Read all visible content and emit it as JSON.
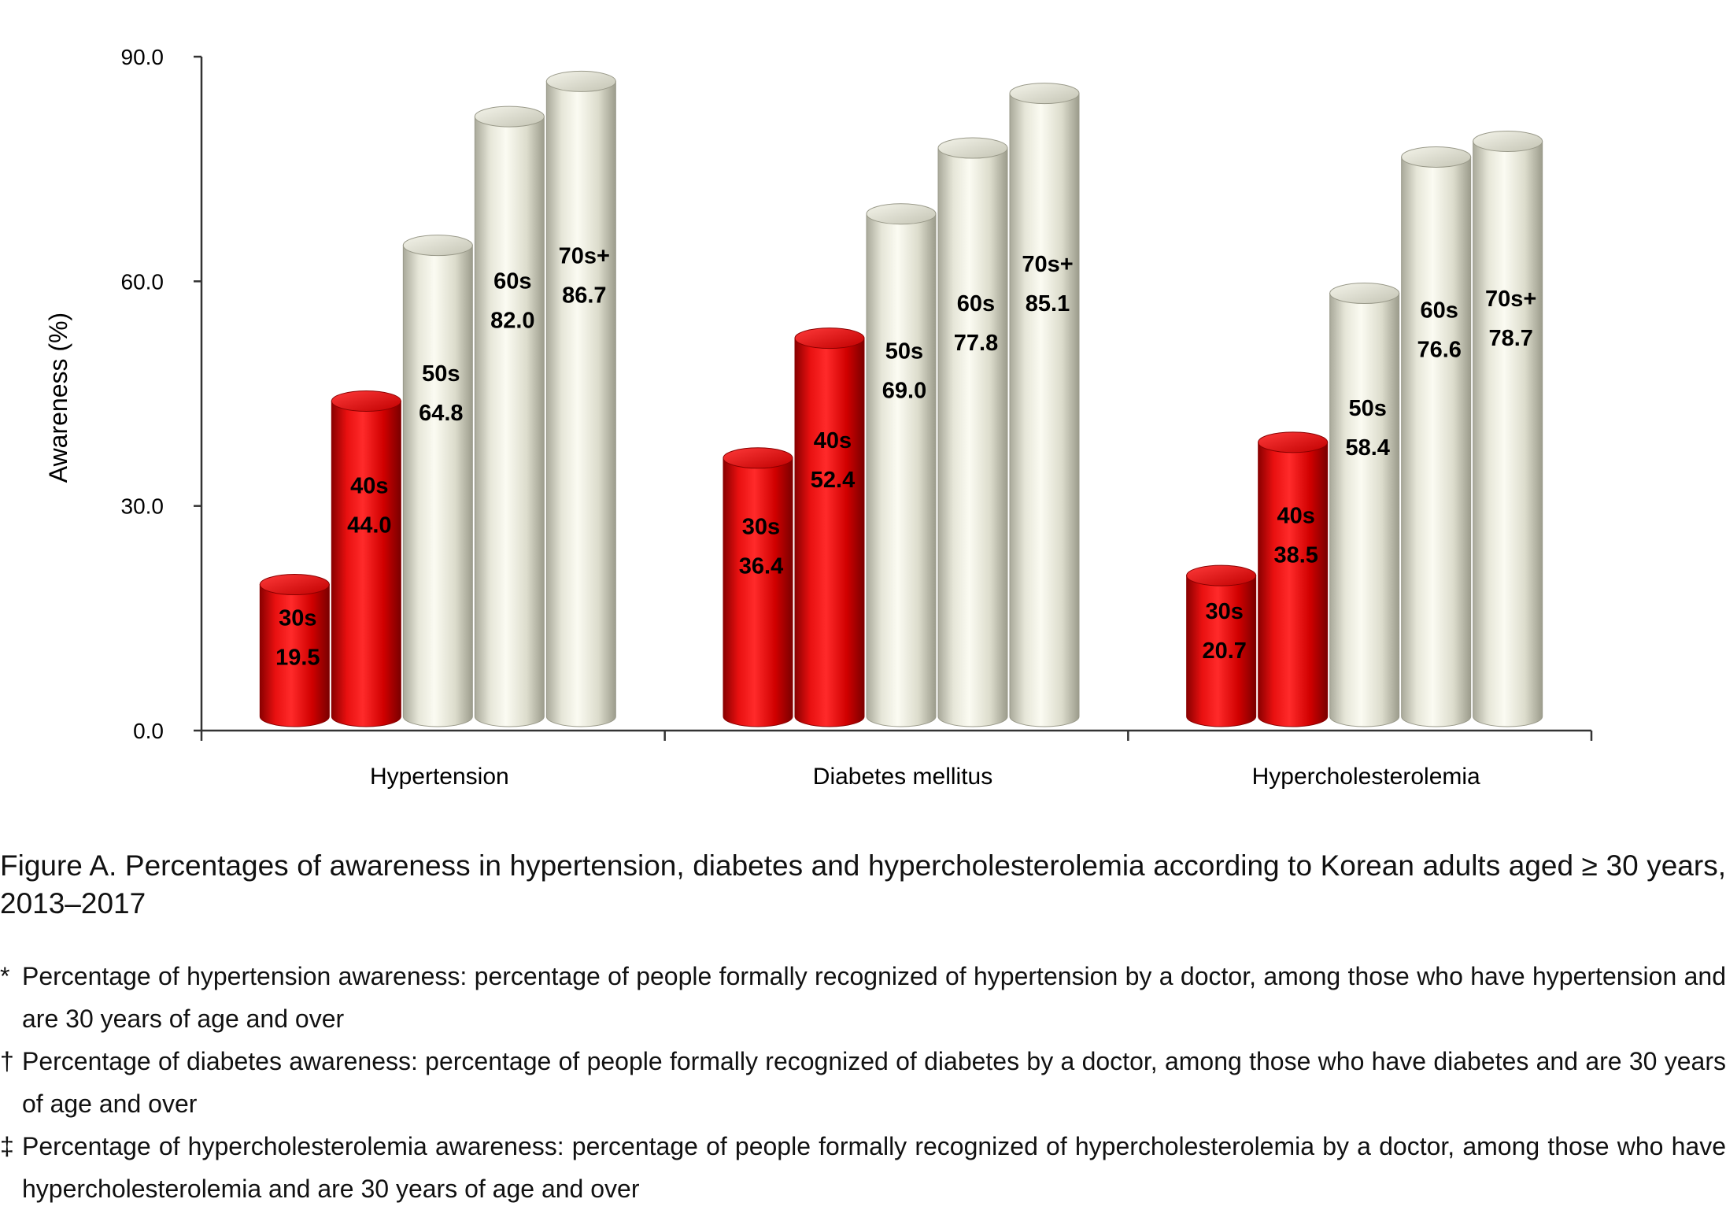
{
  "chart_data": {
    "type": "bar",
    "title": "",
    "xlabel": "",
    "ylabel": "Awareness (%)",
    "ylim": [
      0,
      90
    ],
    "yticks": [
      "0.0",
      "30.0",
      "60.0",
      "90.0"
    ],
    "categories": [
      "Hypertension",
      "Diabetes mellitus",
      "Hypercholesterolemia"
    ],
    "series": [
      {
        "name": "30s",
        "values": [
          19.5,
          36.4,
          20.7
        ],
        "labels": [
          "19.5",
          "36.4",
          "20.7"
        ],
        "color": "#d40000"
      },
      {
        "name": "40s",
        "values": [
          44.0,
          52.4,
          38.5
        ],
        "labels": [
          "44.0",
          "52.4",
          "38.5"
        ],
        "color": "#d40000"
      },
      {
        "name": "50s",
        "values": [
          64.8,
          69.0,
          58.4
        ],
        "labels": [
          "64.8",
          "69.0",
          "58.4"
        ],
        "color": "#eeeedd"
      },
      {
        "name": "60s",
        "values": [
          82.0,
          77.8,
          76.6
        ],
        "labels": [
          "82.0",
          "77.8",
          "76.6"
        ],
        "color": "#eeeedd"
      },
      {
        "name": "70s+",
        "values": [
          86.7,
          85.1,
          78.7
        ],
        "labels": [
          "86.7",
          "85.1",
          "78.7"
        ],
        "color": "#eeeedd"
      }
    ],
    "grid": false,
    "legend": "none"
  },
  "caption": {
    "prefix": "Figure A.",
    "text": " Percentages of awareness in hypertension, diabetes and hypercholesterolemia according to Korean adults aged ≥ 30 years, 2013–2017"
  },
  "notes": [
    {
      "mark": "*",
      "text": "Percentage of hypertension awareness: percentage of people formally recognized of hypertension by a doctor, among those who have hypertension and are 30 years of age and over"
    },
    {
      "mark": "†",
      "text": "Percentage of diabetes awareness: percentage of people formally recognized of diabetes by a doctor, among those who have diabetes and are 30 years of age and over"
    },
    {
      "mark": "‡",
      "text": "Percentage of hypercholesterolemia awareness: percentage of people formally recognized of hypercholesterolemia by a doctor, among those who have hypercholesterolemia and are 30 years of age and over"
    }
  ]
}
